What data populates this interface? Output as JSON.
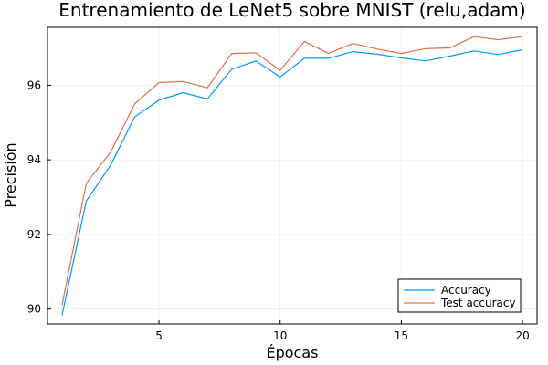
{
  "chart_data": {
    "type": "line",
    "title": "Entrenamiento de LeNet5 sobre MNIST (relu,adam)",
    "xlabel": "Épocas",
    "ylabel": "Precisión",
    "x": [
      1,
      2,
      3,
      4,
      5,
      6,
      7,
      8,
      9,
      10,
      11,
      12,
      13,
      14,
      15,
      16,
      17,
      18,
      19,
      20
    ],
    "xlim": [
      0.4,
      20.6
    ],
    "ylim": [
      89.6,
      97.55
    ],
    "xticks": [
      5,
      10,
      15,
      20
    ],
    "yticks": [
      90,
      92,
      94,
      96
    ],
    "grid": true,
    "legend_position": "bottom-right",
    "series": [
      {
        "name": "Accuracy",
        "color": "#009AFA",
        "values": [
          89.83,
          92.9,
          93.85,
          95.15,
          95.6,
          95.8,
          95.63,
          96.43,
          96.65,
          96.22,
          96.72,
          96.72,
          96.9,
          96.83,
          96.73,
          96.65,
          96.78,
          96.92,
          96.82,
          96.95
        ]
      },
      {
        "name": "Test accuracy",
        "color": "#E36F47",
        "values": [
          90.1,
          93.37,
          94.2,
          95.5,
          96.07,
          96.1,
          95.93,
          96.85,
          96.87,
          96.4,
          97.17,
          96.85,
          97.12,
          96.97,
          96.85,
          96.98,
          97.0,
          97.3,
          97.22,
          97.3
        ]
      }
    ]
  }
}
